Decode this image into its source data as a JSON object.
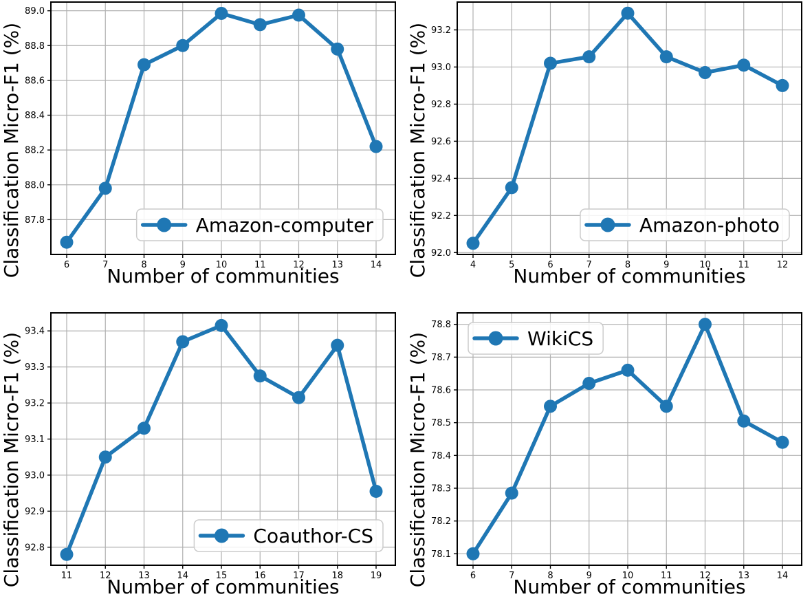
{
  "figure": {
    "background": "#ffffff",
    "line_color": "#1f77b4",
    "grid_color": "#b0b0b0",
    "axis_color": "#000000",
    "legend_border_color": "#cccccc",
    "xlabel": "Number of communities",
    "ylabel": "Classification Micro-F1 (%)"
  },
  "chart_data": [
    {
      "type": "line",
      "id": "amazon-computer",
      "legend": "Amazon-computer",
      "legend_position": "lower-right",
      "xlabel": "Number of communities",
      "ylabel": "Classification Micro-F1 (%)",
      "x": [
        6,
        7,
        8,
        9,
        10,
        11,
        12,
        13,
        14
      ],
      "y": [
        87.67,
        87.98,
        88.69,
        88.8,
        88.985,
        88.92,
        88.975,
        88.78,
        88.22
      ],
      "xticks": [
        6,
        7,
        8,
        9,
        10,
        11,
        12,
        13,
        14
      ],
      "yticks": [
        87.8,
        88.0,
        88.2,
        88.4,
        88.6,
        88.8,
        89.0
      ],
      "xlim": [
        5.6,
        14.5
      ],
      "ylim": [
        87.6,
        89.05
      ],
      "grid": true
    },
    {
      "type": "line",
      "id": "amazon-photo",
      "legend": "Amazon-photo",
      "legend_position": "lower-right",
      "xlabel": "Number of communities",
      "ylabel": "Classification Micro-F1 (%)",
      "x": [
        4,
        5,
        6,
        7,
        8,
        9,
        10,
        11,
        12
      ],
      "y": [
        92.05,
        92.35,
        93.02,
        93.055,
        93.29,
        93.055,
        92.97,
        93.01,
        92.9
      ],
      "xticks": [
        4,
        5,
        6,
        7,
        8,
        9,
        10,
        11,
        12
      ],
      "yticks": [
        92.0,
        92.2,
        92.4,
        92.6,
        92.8,
        93.0,
        93.2
      ],
      "xlim": [
        3.6,
        12.5
      ],
      "ylim": [
        91.99,
        93.35
      ],
      "grid": true
    },
    {
      "type": "line",
      "id": "coauthor-cs",
      "legend": "Coauthor-CS",
      "legend_position": "lower-right",
      "xlabel": "Number of communities",
      "ylabel": "Classification Micro-F1 (%)",
      "x": [
        11,
        12,
        13,
        14,
        15,
        16,
        17,
        18,
        19
      ],
      "y": [
        92.78,
        93.05,
        93.13,
        93.37,
        93.415,
        93.275,
        93.215,
        93.36,
        92.955
      ],
      "xticks": [
        11,
        12,
        13,
        14,
        15,
        16,
        17,
        18,
        19
      ],
      "yticks": [
        92.8,
        92.9,
        93.0,
        93.1,
        93.2,
        93.3,
        93.4
      ],
      "xlim": [
        10.6,
        19.5
      ],
      "ylim": [
        92.75,
        93.45
      ],
      "grid": true
    },
    {
      "type": "line",
      "id": "wikics",
      "legend": "WikiCS",
      "legend_position": "upper-left",
      "xlabel": "Number of communities",
      "ylabel": "Classification Micro-F1 (%)",
      "x": [
        6,
        7,
        8,
        9,
        10,
        11,
        12,
        13,
        14
      ],
      "y": [
        78.1,
        78.285,
        78.55,
        78.62,
        78.66,
        78.55,
        78.8,
        78.505,
        78.44
      ],
      "xticks": [
        6,
        7,
        8,
        9,
        10,
        11,
        12,
        13,
        14
      ],
      "yticks": [
        78.1,
        78.2,
        78.3,
        78.4,
        78.5,
        78.6,
        78.7,
        78.8
      ],
      "xlim": [
        5.6,
        14.5
      ],
      "ylim": [
        78.065,
        78.835
      ],
      "grid": true
    }
  ]
}
